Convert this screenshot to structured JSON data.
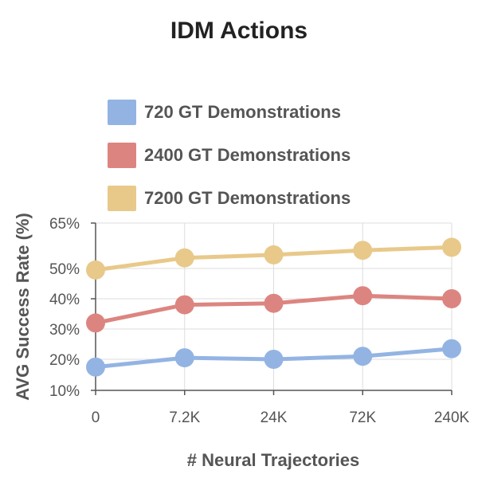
{
  "chart_data": {
    "type": "line",
    "title": "IDM Actions",
    "xlabel": "# Neural Trajectories",
    "ylabel": "AVG Success Rate (%)",
    "categories": [
      "0",
      "7.2K",
      "24K",
      "72K",
      "240K"
    ],
    "yticks": [
      10,
      20,
      30,
      40,
      50,
      65
    ],
    "ytick_labels": [
      "10%",
      "20%",
      "30%",
      "40%",
      "50%",
      "65%"
    ],
    "series": [
      {
        "name": "720 GT Demonstrations",
        "color": "#93b4e3",
        "values": [
          17.5,
          20.5,
          20.0,
          21.0,
          23.5
        ]
      },
      {
        "name": "2400 GT Demonstrations",
        "color": "#dc8580",
        "values": [
          32.0,
          38.0,
          38.5,
          41.0,
          40.0
        ]
      },
      {
        "name": "7200 GT Demonstrations",
        "color": "#e8c98a",
        "values": [
          49.5,
          53.5,
          54.5,
          56.0,
          57.0
        ]
      }
    ],
    "legend_position": "top",
    "grid": true
  }
}
